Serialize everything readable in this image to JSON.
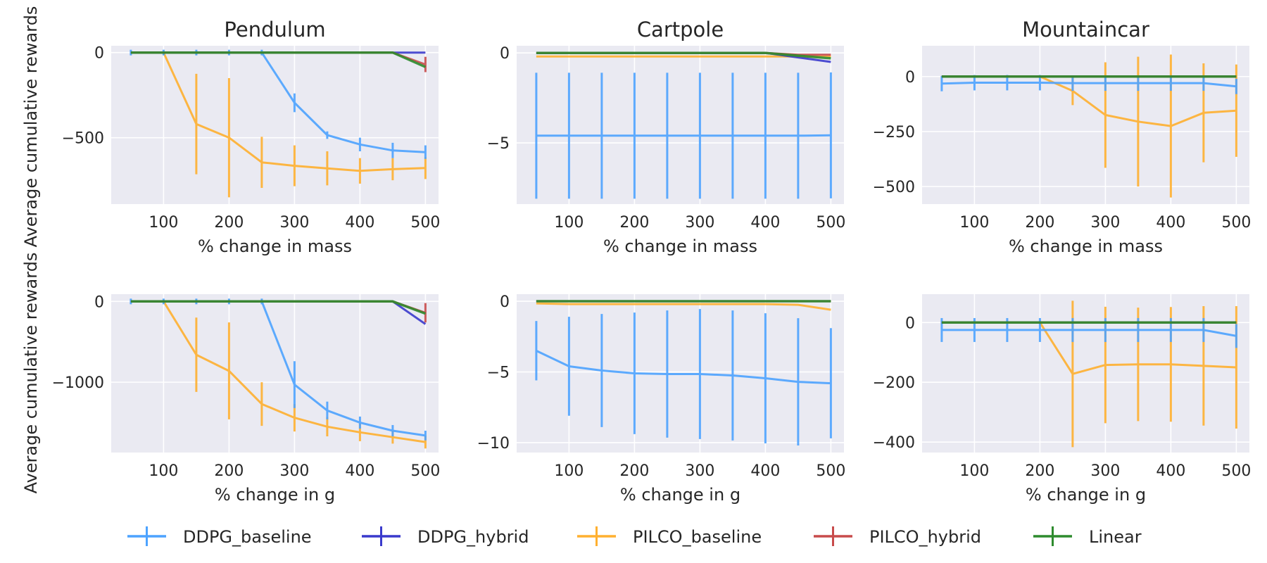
{
  "colors": {
    "background": "#ffffff",
    "plot_bg": "#EAEAF2",
    "grid": "#ffffff",
    "text": "#262626"
  },
  "legend": {
    "placement": "bottom-center",
    "entries": [
      {
        "name": "DDPG_baseline",
        "color": "#4DA3FF"
      },
      {
        "name": "DDPG_hybrid",
        "color": "#3A3ACC"
      },
      {
        "name": "PILCO_baseline",
        "color": "#FFB030"
      },
      {
        "name": "PILCO_hybrid",
        "color": "#C84B4B"
      },
      {
        "name": "Linear",
        "color": "#2E8B2E"
      }
    ]
  },
  "chart_data": [
    {
      "type": "line",
      "title": "Pendulum",
      "xlabel": "% change in mass",
      "ylabel": "Average cumulative rewards",
      "x": [
        50,
        100,
        150,
        200,
        250,
        300,
        350,
        400,
        450,
        500
      ],
      "xticks": [
        100,
        200,
        300,
        400,
        500
      ],
      "xlim": [
        20,
        520
      ],
      "yticks": [
        0,
        -500
      ],
      "ylim": [
        -890,
        40
      ],
      "series": [
        {
          "name": "DDPG_baseline",
          "values": [
            0,
            0,
            0,
            0,
            0,
            -295,
            -485,
            -540,
            -575,
            -585
          ],
          "errors": [
            0,
            0,
            0,
            0,
            0,
            55,
            22,
            40,
            45,
            40
          ]
        },
        {
          "name": "DDPG_hybrid",
          "values": [
            0,
            0,
            0,
            0,
            0,
            0,
            0,
            0,
            0,
            0
          ],
          "errors": [
            0,
            0,
            0,
            0,
            0,
            0,
            0,
            0,
            0,
            0
          ]
        },
        {
          "name": "PILCO_baseline",
          "values": [
            0,
            0,
            -420,
            -500,
            -645,
            -665,
            -680,
            -695,
            -685,
            -678
          ],
          "errors": [
            0,
            0,
            295,
            350,
            150,
            120,
            100,
            75,
            65,
            65
          ]
        },
        {
          "name": "PILCO_hybrid",
          "values": [
            0,
            0,
            0,
            0,
            0,
            0,
            0,
            0,
            0,
            -70
          ],
          "errors": [
            0,
            0,
            0,
            0,
            0,
            0,
            0,
            0,
            0,
            45
          ]
        },
        {
          "name": "Linear",
          "values": [
            0,
            0,
            0,
            0,
            0,
            0,
            0,
            0,
            0,
            -85
          ],
          "errors": [
            0,
            0,
            0,
            0,
            0,
            0,
            0,
            0,
            0,
            0
          ]
        }
      ]
    },
    {
      "type": "line",
      "title": "Cartpole",
      "xlabel": "% change in mass",
      "ylabel": "",
      "x": [
        50,
        100,
        150,
        200,
        250,
        300,
        350,
        400,
        450,
        500
      ],
      "xticks": [
        100,
        200,
        300,
        400,
        500
      ],
      "xlim": [
        20,
        520
      ],
      "yticks": [
        0,
        -5
      ],
      "ylim": [
        -8.4,
        0.4
      ],
      "series": [
        {
          "name": "DDPG_baseline",
          "values": [
            -4.6,
            -4.6,
            -4.6,
            -4.6,
            -4.6,
            -4.6,
            -4.6,
            -4.6,
            -4.6,
            -4.58
          ],
          "errors": [
            3.5,
            3.5,
            3.5,
            3.5,
            3.5,
            3.5,
            3.5,
            3.5,
            3.5,
            3.5
          ]
        },
        {
          "name": "DDPG_hybrid",
          "values": [
            0,
            0,
            0,
            0,
            0,
            0,
            0,
            0,
            -0.25,
            -0.5
          ],
          "errors": [
            0,
            0,
            0,
            0,
            0,
            0,
            0,
            0,
            0,
            0
          ]
        },
        {
          "name": "PILCO_baseline",
          "values": [
            -0.2,
            -0.2,
            -0.2,
            -0.2,
            -0.2,
            -0.2,
            -0.2,
            -0.2,
            -0.2,
            -0.2
          ],
          "errors": [
            0,
            0,
            0,
            0,
            0,
            0,
            0,
            0,
            0,
            0
          ]
        },
        {
          "name": "PILCO_hybrid",
          "values": [
            0,
            0,
            0,
            0,
            0,
            0,
            0,
            0,
            -0.1,
            -0.1
          ],
          "errors": [
            0,
            0,
            0,
            0,
            0,
            0,
            0,
            0,
            0,
            0
          ]
        },
        {
          "name": "Linear",
          "values": [
            0,
            0,
            0,
            0,
            0,
            0,
            0,
            0,
            -0.15,
            -0.3
          ],
          "errors": [
            0,
            0,
            0,
            0,
            0,
            0,
            0,
            0,
            0,
            0
          ]
        }
      ]
    },
    {
      "type": "line",
      "title": "Mountaincar",
      "xlabel": "% change in mass",
      "ylabel": "",
      "x": [
        50,
        100,
        150,
        200,
        250,
        300,
        350,
        400,
        450,
        500
      ],
      "xticks": [
        100,
        200,
        300,
        400,
        500
      ],
      "xlim": [
        20,
        520
      ],
      "yticks": [
        0,
        -250,
        -500
      ],
      "ylim": [
        -580,
        140
      ],
      "series": [
        {
          "name": "DDPG_baseline",
          "values": [
            -32,
            -28,
            -28,
            -28,
            -30,
            -30,
            -30,
            -30,
            -30,
            -45
          ],
          "errors": [
            35,
            35,
            35,
            35,
            35,
            35,
            35,
            35,
            35,
            35
          ]
        },
        {
          "name": "DDPG_hybrid",
          "values": [
            0,
            0,
            0,
            0,
            0,
            0,
            0,
            0,
            0,
            0
          ],
          "errors": [
            0,
            0,
            0,
            0,
            0,
            0,
            0,
            0,
            0,
            0
          ]
        },
        {
          "name": "PILCO_baseline",
          "values": [
            0,
            0,
            0,
            0,
            -65,
            -175,
            -205,
            -225,
            -165,
            -155
          ],
          "errors": [
            0,
            0,
            0,
            0,
            65,
            240,
            295,
            325,
            225,
            210
          ]
        },
        {
          "name": "PILCO_hybrid",
          "values": [
            0,
            0,
            0,
            0,
            0,
            0,
            0,
            0,
            0,
            0
          ],
          "errors": [
            0,
            0,
            0,
            0,
            0,
            0,
            0,
            0,
            0,
            0
          ]
        },
        {
          "name": "Linear",
          "values": [
            0,
            0,
            0,
            0,
            0,
            0,
            0,
            0,
            0,
            0
          ],
          "errors": [
            0,
            0,
            0,
            0,
            0,
            0,
            0,
            0,
            0,
            0
          ]
        }
      ]
    },
    {
      "type": "line",
      "title": "",
      "xlabel": "% change in g",
      "ylabel": "Average cumulative rewards",
      "x": [
        50,
        100,
        150,
        200,
        250,
        300,
        350,
        400,
        450,
        500
      ],
      "xticks": [
        100,
        200,
        300,
        400,
        500
      ],
      "xlim": [
        20,
        520
      ],
      "yticks": [
        0,
        -1000
      ],
      "ylim": [
        -1870,
        90
      ],
      "series": [
        {
          "name": "DDPG_baseline",
          "values": [
            0,
            0,
            0,
            0,
            0,
            -1030,
            -1350,
            -1500,
            -1600,
            -1660
          ],
          "errors": [
            0,
            0,
            0,
            0,
            0,
            290,
            110,
            75,
            70,
            60
          ]
        },
        {
          "name": "DDPG_hybrid",
          "values": [
            0,
            0,
            0,
            0,
            0,
            0,
            0,
            0,
            0,
            -280
          ],
          "errors": [
            0,
            0,
            0,
            0,
            0,
            0,
            0,
            0,
            0,
            0
          ]
        },
        {
          "name": "PILCO_baseline",
          "values": [
            0,
            0,
            -660,
            -860,
            -1270,
            -1440,
            -1550,
            -1620,
            -1680,
            -1740
          ],
          "errors": [
            0,
            0,
            460,
            600,
            270,
            170,
            120,
            110,
            80,
            80
          ]
        },
        {
          "name": "PILCO_hybrid",
          "values": [
            0,
            0,
            0,
            0,
            0,
            0,
            0,
            0,
            0,
            -140
          ],
          "errors": [
            0,
            0,
            0,
            0,
            0,
            0,
            0,
            0,
            0,
            120
          ]
        },
        {
          "name": "Linear",
          "values": [
            0,
            0,
            0,
            0,
            0,
            0,
            0,
            0,
            0,
            -150
          ],
          "errors": [
            0,
            0,
            0,
            0,
            0,
            0,
            0,
            0,
            0,
            0
          ]
        }
      ]
    },
    {
      "type": "line",
      "title": "",
      "xlabel": "% change in g",
      "ylabel": "",
      "x": [
        50,
        100,
        150,
        200,
        250,
        300,
        350,
        400,
        450,
        500
      ],
      "xticks": [
        100,
        200,
        300,
        400,
        500
      ],
      "xlim": [
        20,
        520
      ],
      "yticks": [
        0,
        -5,
        -10
      ],
      "ylim": [
        -10.7,
        0.5
      ],
      "series": [
        {
          "name": "DDPG_baseline",
          "values": [
            -3.5,
            -4.6,
            -4.9,
            -5.1,
            -5.15,
            -5.15,
            -5.25,
            -5.45,
            -5.7,
            -5.8
          ],
          "errors": [
            2.1,
            3.5,
            4.0,
            4.3,
            4.5,
            4.6,
            4.6,
            4.6,
            4.5,
            3.9
          ]
        },
        {
          "name": "DDPG_hybrid",
          "values": [
            0,
            0,
            0,
            0,
            0,
            0,
            0,
            0,
            0,
            0
          ],
          "errors": [
            0,
            0,
            0,
            0,
            0,
            0,
            0,
            0,
            0,
            0
          ]
        },
        {
          "name": "PILCO_baseline",
          "values": [
            -0.15,
            -0.2,
            -0.2,
            -0.2,
            -0.2,
            -0.2,
            -0.2,
            -0.2,
            -0.25,
            -0.6
          ],
          "errors": [
            0,
            0,
            0,
            0,
            0,
            0,
            0,
            0,
            0,
            0
          ]
        },
        {
          "name": "PILCO_hybrid",
          "values": [
            0,
            0,
            0,
            0,
            0,
            0,
            0,
            0,
            0,
            0
          ],
          "errors": [
            0,
            0,
            0,
            0,
            0,
            0,
            0,
            0,
            0,
            0
          ]
        },
        {
          "name": "Linear",
          "values": [
            0,
            0,
            0,
            0,
            0,
            0,
            0,
            0,
            0,
            0
          ],
          "errors": [
            0,
            0,
            0,
            0,
            0,
            0,
            0,
            0,
            0,
            0
          ]
        }
      ]
    },
    {
      "type": "line",
      "title": "",
      "xlabel": "% change in g",
      "ylabel": "",
      "x": [
        50,
        100,
        150,
        200,
        250,
        300,
        350,
        400,
        450,
        500
      ],
      "xticks": [
        100,
        200,
        300,
        400,
        500
      ],
      "xlim": [
        20,
        520
      ],
      "yticks": [
        0,
        -200,
        -400
      ],
      "ylim": [
        -435,
        95
      ],
      "series": [
        {
          "name": "DDPG_baseline",
          "values": [
            -25,
            -25,
            -25,
            -25,
            -25,
            -25,
            -25,
            -25,
            -25,
            -45
          ],
          "errors": [
            40,
            40,
            40,
            40,
            40,
            40,
            40,
            40,
            40,
            40
          ]
        },
        {
          "name": "DDPG_hybrid",
          "values": [
            0,
            0,
            0,
            0,
            0,
            0,
            0,
            0,
            0,
            0
          ],
          "errors": [
            0,
            0,
            0,
            0,
            0,
            0,
            0,
            0,
            0,
            0
          ]
        },
        {
          "name": "PILCO_baseline",
          "values": [
            0,
            0,
            0,
            0,
            -172,
            -142,
            -140,
            -140,
            -145,
            -150
          ],
          "errors": [
            0,
            0,
            0,
            0,
            245,
            195,
            190,
            192,
            200,
            205
          ]
        },
        {
          "name": "PILCO_hybrid",
          "values": [
            0,
            0,
            0,
            0,
            0,
            0,
            0,
            0,
            0,
            0
          ],
          "errors": [
            0,
            0,
            0,
            0,
            0,
            0,
            0,
            0,
            0,
            0
          ]
        },
        {
          "name": "Linear",
          "values": [
            0,
            0,
            0,
            0,
            0,
            0,
            0,
            0,
            0,
            0
          ],
          "errors": [
            0,
            0,
            0,
            0,
            0,
            0,
            0,
            0,
            0,
            0
          ]
        }
      ]
    }
  ]
}
